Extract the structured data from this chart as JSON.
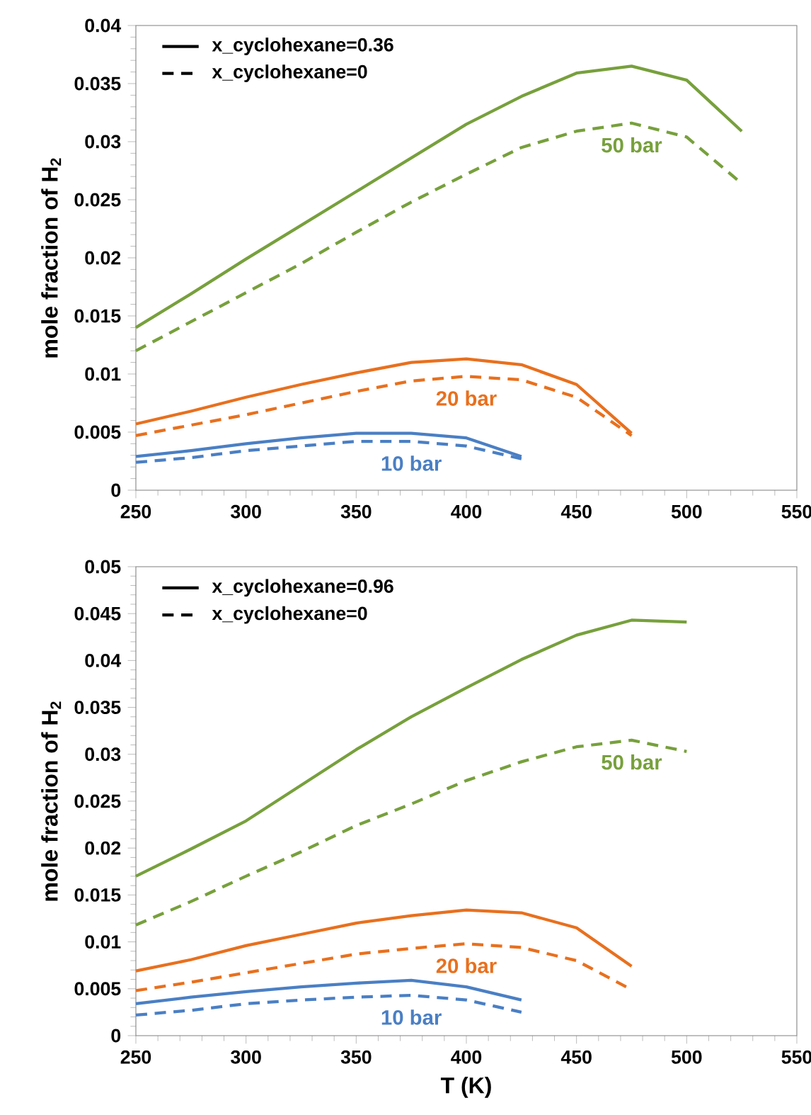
{
  "chart_data": [
    {
      "type": "line",
      "ylabel": "mole fraction of H$_{2}$",
      "x": [
        250,
        275,
        300,
        325,
        350,
        375,
        400,
        425,
        450,
        475,
        500,
        525
      ],
      "xlim": [
        250,
        550
      ],
      "xticks": [
        250,
        300,
        350,
        400,
        450,
        500,
        550
      ],
      "ylim": [
        0,
        0.04
      ],
      "yticks": [
        0,
        0.005,
        0.01,
        0.015,
        0.02,
        0.025,
        0.03,
        0.035,
        0.04
      ],
      "grid": false,
      "marker": "none",
      "series": [
        {
          "name": "50 bar",
          "color": "#77a03c",
          "line_style": "solid",
          "values": [
            0.014,
            0.0169,
            0.0199,
            0.0228,
            0.0257,
            0.0286,
            0.0315,
            0.0339,
            0.0359,
            0.0365,
            0.0353,
            0.0309
          ]
        },
        {
          "color": "#77a03c",
          "line_style": "dashed",
          "values": [
            0.012,
            0.0145,
            0.017,
            0.0195,
            0.0222,
            0.0248,
            0.0272,
            0.0295,
            0.0309,
            0.0316,
            0.0304,
            0.0264
          ]
        },
        {
          "name": "20 bar",
          "color": "#e8701e",
          "line_style": "solid",
          "values": [
            0.0057,
            0.0068,
            0.008,
            0.0091,
            0.0101,
            0.011,
            0.0113,
            0.0108,
            0.0091,
            0.0049,
            null,
            null
          ]
        },
        {
          "color": "#e8701e",
          "line_style": "dashed",
          "values": [
            0.0047,
            0.0056,
            0.0065,
            0.0075,
            0.0085,
            0.0094,
            0.0098,
            0.0095,
            0.008,
            0.0047,
            null,
            null
          ]
        },
        {
          "name": "10 bar",
          "color": "#4a7fc4",
          "line_style": "solid",
          "values": [
            0.0029,
            0.0034,
            0.004,
            0.0045,
            0.0049,
            0.0049,
            0.0045,
            0.0029,
            null,
            null,
            null,
            null
          ]
        },
        {
          "color": "#4a7fc4",
          "line_style": "dashed",
          "values": [
            0.0024,
            0.0028,
            0.0034,
            0.0038,
            0.0042,
            0.0042,
            0.0038,
            0.0027,
            null,
            null,
            null,
            null
          ]
        }
      ],
      "annotations": [
        "x_cyclohexane=0.36",
        "x_cyclohexane=0"
      ]
    },
    {
      "type": "line",
      "xlabel": "T (K)",
      "ylabel": "mole fraction of H$_{2}$",
      "x": [
        250,
        275,
        300,
        325,
        350,
        375,
        400,
        425,
        450,
        475,
        500
      ],
      "xlim": [
        250,
        550
      ],
      "xticks": [
        250,
        300,
        350,
        400,
        450,
        500,
        550
      ],
      "ylim": [
        0,
        0.05
      ],
      "yticks": [
        0,
        0.005,
        0.01,
        0.015,
        0.02,
        0.025,
        0.03,
        0.035,
        0.04,
        0.045,
        0.05
      ],
      "grid": false,
      "marker": "none",
      "series": [
        {
          "name": "50 bar",
          "color": "#77a03c",
          "line_style": "solid",
          "values": [
            0.017,
            0.0199,
            0.0229,
            0.0267,
            0.0305,
            0.034,
            0.0371,
            0.0401,
            0.0427,
            0.0443,
            0.0441
          ]
        },
        {
          "color": "#77a03c",
          "line_style": "dashed",
          "values": [
            0.0118,
            0.0143,
            0.017,
            0.0196,
            0.0224,
            0.0247,
            0.0272,
            0.0292,
            0.0308,
            0.0315,
            0.0303
          ]
        },
        {
          "name": "20 bar",
          "color": "#e8701e",
          "line_style": "solid",
          "values": [
            0.0069,
            0.0081,
            0.0096,
            0.0108,
            0.012,
            0.0128,
            0.0134,
            0.0131,
            0.0115,
            0.0074,
            null
          ]
        },
        {
          "color": "#e8701e",
          "line_style": "dashed",
          "values": [
            0.0048,
            0.0057,
            0.0067,
            0.0077,
            0.0087,
            0.0093,
            0.0098,
            0.0094,
            0.008,
            0.0049,
            null
          ]
        },
        {
          "name": "10 bar",
          "color": "#4a7fc4",
          "line_style": "solid",
          "values": [
            0.0034,
            0.0041,
            0.0047,
            0.0052,
            0.0056,
            0.0059,
            0.0052,
            0.0038,
            null,
            null,
            null
          ]
        },
        {
          "color": "#4a7fc4",
          "line_style": "dashed",
          "values": [
            0.0022,
            0.0027,
            0.0034,
            0.0038,
            0.0041,
            0.0043,
            0.0038,
            0.0025,
            null,
            null,
            null
          ]
        }
      ],
      "annotations": [
        "x_cyclohexane=0.96",
        "x_cyclohexane=0"
      ]
    }
  ]
}
